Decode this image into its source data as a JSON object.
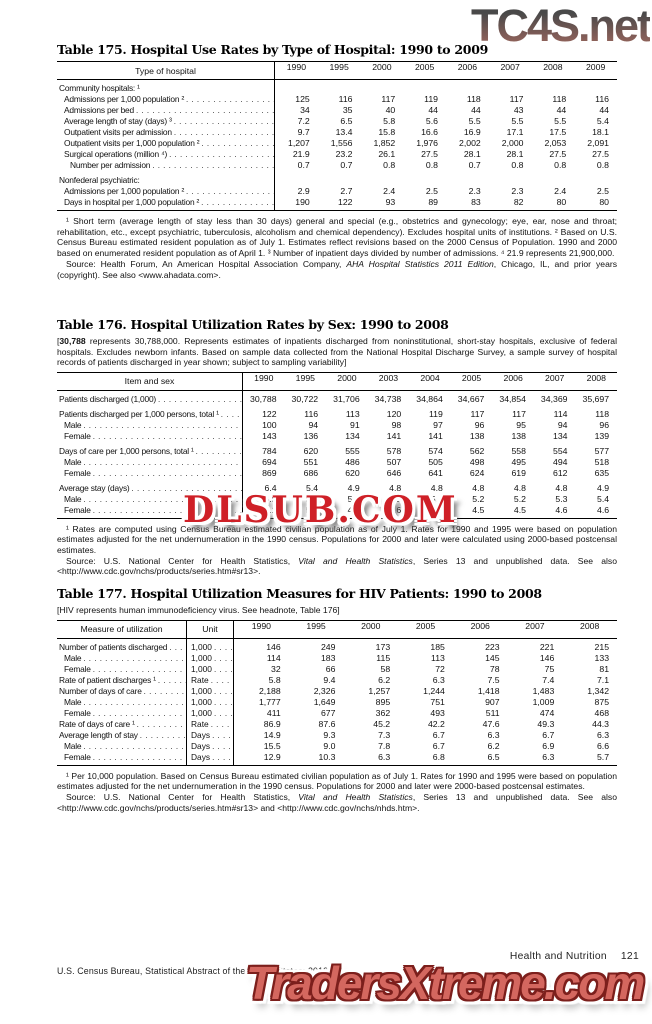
{
  "watermarks": {
    "top_right": {
      "text": "TC4S.net",
      "color_top": "#3a3a3a",
      "color_bottom": "#9a5c52"
    },
    "middle": {
      "text": "DLSUB.COM",
      "color": "#cf2027"
    },
    "bottom": {
      "text": "TradersXtreme.com",
      "fill": "#d4675f",
      "outline": "#7c1f1c"
    }
  },
  "footer": {
    "running_head": "Health and Nutrition",
    "page_number": "121",
    "source_line": "U.S. Census Bureau, Statistical Abstract of the United States: 2012"
  },
  "tables": [
    {
      "id": "t175",
      "title": "Table 175. Hospital Use Rates by Type of Hospital: 1990 to 2009",
      "stub_header": "Type of hospital",
      "unit_header": null,
      "years": [
        "1990",
        "1995",
        "2000",
        "2005",
        "2006",
        "2007",
        "2008",
        "2009"
      ],
      "rows": [
        {
          "label": "Community hospitals: ¹",
          "group": true,
          "indent": 0,
          "values": []
        },
        {
          "label": "Admissions per 1,000 population ²",
          "indent": 1,
          "values": [
            "125",
            "116",
            "117",
            "119",
            "118",
            "117",
            "118",
            "116"
          ]
        },
        {
          "label": "Admissions per bed",
          "indent": 1,
          "values": [
            "34",
            "35",
            "40",
            "44",
            "44",
            "43",
            "44",
            "44"
          ]
        },
        {
          "label": "Average length of stay (days) ³",
          "indent": 1,
          "values": [
            "7.2",
            "6.5",
            "5.8",
            "5.6",
            "5.5",
            "5.5",
            "5.5",
            "5.4"
          ]
        },
        {
          "label": "Outpatient visits per admission",
          "indent": 1,
          "values": [
            "9.7",
            "13.4",
            "15.8",
            "16.6",
            "16.9",
            "17.1",
            "17.5",
            "18.1"
          ]
        },
        {
          "label": "Outpatient visits per 1,000 population ²",
          "indent": 1,
          "values": [
            "1,207",
            "1,556",
            "1,852",
            "1,976",
            "2,002",
            "2,000",
            "2,053",
            "2,091"
          ]
        },
        {
          "label": "Surgical operations (million ⁴)",
          "indent": 1,
          "values": [
            "21.9",
            "23.2",
            "26.1",
            "27.5",
            "28.1",
            "28.1",
            "27.5",
            "27.5"
          ]
        },
        {
          "label": "Number per admission",
          "indent": 2,
          "values": [
            "0.7",
            "0.7",
            "0.8",
            "0.8",
            "0.7",
            "0.8",
            "0.8",
            "0.8"
          ]
        },
        {
          "label": "Nonfederal psychiatric:",
          "group": true,
          "gap": true,
          "indent": 0,
          "values": []
        },
        {
          "label": "Admissions per 1,000 population ²",
          "indent": 1,
          "values": [
            "2.9",
            "2.7",
            "2.4",
            "2.5",
            "2.3",
            "2.3",
            "2.4",
            "2.5"
          ]
        },
        {
          "label": "Days in hospital per 1,000 population ²",
          "indent": 1,
          "values": [
            "190",
            "122",
            "93",
            "89",
            "83",
            "82",
            "80",
            "80"
          ]
        }
      ],
      "headnote": null,
      "footnotes": [
        [
          {
            "t": "¹ Short term (average length of stay less than 30 days) general and special (e.g., obstetrics and gynecology; eye, ear, nose and throat; rehabilitation, etc., except psychiatric, tuberculosis, alcoholism and chemical dependency). Excludes hospital units of institutions. ² Based on U.S. Census Bureau estimated resident population as of July 1. Estimates reflect revisions based on the 2000 Census of Population. 1990 and 2000 based on enumerated resident population as of April 1. ³ Number of inpatient days divided by number of admissions. ⁴ 21.9 represents 21,900,000."
          }
        ],
        [
          {
            "t": "Source: Health Forum, An American Hospital Association Company, "
          },
          {
            "t": "AHA Hospital Statistics 2011 Edition",
            "i": true
          },
          {
            "t": ", Chicago, IL, and prior years (copyright). See also <www.ahadata.com>."
          }
        ]
      ]
    },
    {
      "id": "t176",
      "title": "Table 176. Hospital Utilization Rates by Sex: 1990 to 2008",
      "stub_header": "Item and sex",
      "unit_header": null,
      "years": [
        "1990",
        "1995",
        "2000",
        "2003",
        "2004",
        "2005",
        "2006",
        "2007",
        "2008"
      ],
      "rows": [
        {
          "label": "Patients discharged (1,000)",
          "indent": 0,
          "values": [
            "30,788",
            "30,722",
            "31,706",
            "34,738",
            "34,864",
            "34,667",
            "34,854",
            "34,369",
            "35,697"
          ]
        },
        {
          "label": "Patients discharged per 1,000 persons, total ¹",
          "indent": 0,
          "gap": true,
          "values": [
            "122",
            "116",
            "113",
            "120",
            "119",
            "117",
            "117",
            "114",
            "118"
          ]
        },
        {
          "label": "Male",
          "indent": 1,
          "values": [
            "100",
            "94",
            "91",
            "98",
            "97",
            "96",
            "95",
            "94",
            "96"
          ]
        },
        {
          "label": "Female",
          "indent": 1,
          "values": [
            "143",
            "136",
            "134",
            "141",
            "141",
            "138",
            "138",
            "134",
            "139"
          ]
        },
        {
          "label": "Days of care per 1,000 persons, total ¹",
          "indent": 0,
          "gap": true,
          "values": [
            "784",
            "620",
            "555",
            "578",
            "574",
            "562",
            "558",
            "554",
            "577"
          ]
        },
        {
          "label": "Male",
          "indent": 1,
          "values": [
            "694",
            "551",
            "486",
            "507",
            "505",
            "498",
            "495",
            "494",
            "518"
          ]
        },
        {
          "label": "Female",
          "indent": 1,
          "values": [
            "869",
            "686",
            "620",
            "646",
            "641",
            "624",
            "619",
            "612",
            "635"
          ]
        },
        {
          "label": "Average stay (days)",
          "indent": 0,
          "gap": true,
          "values": [
            "6.4",
            "5.4",
            "4.9",
            "4.8",
            "4.8",
            "4.8",
            "4.8",
            "4.8",
            "4.9"
          ]
        },
        {
          "label": "Male",
          "indent": 1,
          "values": [
            "6.9",
            "5.8",
            "5.3",
            "5.2",
            "5.2",
            "5.2",
            "5.2",
            "5.3",
            "5.4"
          ]
        },
        {
          "label": "Female",
          "indent": 1,
          "values": [
            "6.1",
            "5.0",
            "4.6",
            "4.6",
            "4.5",
            "4.5",
            "4.5",
            "4.6",
            "4.6"
          ]
        }
      ],
      "headnote": [
        {
          "t": "["
        },
        {
          "t": "30,788",
          "b": true
        },
        {
          "t": " represents 30,788,000. Represents estimates of inpatients discharged from noninstitutional, short-stay hospitals, exclusive of federal hospitals. Excludes newborn infants. Based on sample data collected from the National Hospital Discharge Survey, a sample survey of hospital records of patients discharged in year shown; subject to sampling variability]"
        }
      ],
      "footnotes": [
        [
          {
            "t": "¹ Rates are computed using Census Bureau estimated civilian population as of July 1. Rates for 1990 and 1995 were based on population estimates adjusted for the net undernumeration in the 1990 census. Populations for 2000 and later were calculated using 2000-based postcensal estimates."
          }
        ],
        [
          {
            "t": "Source: U.S. National Center for Health Statistics, "
          },
          {
            "t": "Vital and Health Statistics",
            "i": true
          },
          {
            "t": ", Series 13 and unpublished data. See also <http://www.cdc.gov/nchs/products/series.htm#sr13>."
          }
        ]
      ]
    },
    {
      "id": "t177",
      "title": "Table 177. Hospital Utilization Measures for HIV Patients: 1990 to 2008",
      "stub_header": "Measure of utilization",
      "unit_header": "Unit",
      "years": [
        "1990",
        "1995",
        "2000",
        "2005",
        "2006",
        "2007",
        "2008"
      ],
      "rows": [
        {
          "label": "Number of patients discharged",
          "unit": "1,000",
          "indent": 0,
          "values": [
            "146",
            "249",
            "173",
            "185",
            "223",
            "221",
            "215"
          ]
        },
        {
          "label": "Male",
          "unit": "1,000",
          "indent": 1,
          "values": [
            "114",
            "183",
            "115",
            "113",
            "145",
            "146",
            "133"
          ]
        },
        {
          "label": "Female",
          "unit": "1,000",
          "indent": 1,
          "values": [
            "32",
            "66",
            "58",
            "72",
            "78",
            "75",
            "81"
          ]
        },
        {
          "label": "Rate of patient discharges ¹",
          "unit": "Rate",
          "indent": 0,
          "values": [
            "5.8",
            "9.4",
            "6.2",
            "6.3",
            "7.5",
            "7.4",
            "7.1"
          ]
        },
        {
          "label": "Number of days of care",
          "unit": "1,000",
          "indent": 0,
          "values": [
            "2,188",
            "2,326",
            "1,257",
            "1,244",
            "1,418",
            "1,483",
            "1,342"
          ]
        },
        {
          "label": "Male",
          "unit": "1,000",
          "indent": 1,
          "values": [
            "1,777",
            "1,649",
            "895",
            "751",
            "907",
            "1,009",
            "875"
          ]
        },
        {
          "label": "Female",
          "unit": "1,000",
          "indent": 1,
          "values": [
            "411",
            "677",
            "362",
            "493",
            "511",
            "474",
            "468"
          ]
        },
        {
          "label": "Rate of days of care ¹",
          "unit": "Rate",
          "indent": 0,
          "values": [
            "86.9",
            "87.6",
            "45.2",
            "42.2",
            "47.6",
            "49.3",
            "44.3"
          ]
        },
        {
          "label": "Average length of stay",
          "unit": "Days",
          "indent": 0,
          "values": [
            "14.9",
            "9.3",
            "7.3",
            "6.7",
            "6.3",
            "6.7",
            "6.3"
          ]
        },
        {
          "label": "Male",
          "unit": "Days",
          "indent": 1,
          "values": [
            "15.5",
            "9.0",
            "7.8",
            "6.7",
            "6.2",
            "6.9",
            "6.6"
          ]
        },
        {
          "label": "Female",
          "unit": "Days",
          "indent": 1,
          "values": [
            "12.9",
            "10.3",
            "6.3",
            "6.8",
            "6.5",
            "6.3",
            "5.7"
          ]
        }
      ],
      "headnote": [
        {
          "t": "[HIV represents human immunodeficiency virus. See headnote, Table 176]"
        }
      ],
      "footnotes": [
        [
          {
            "t": "¹ Per 10,000 population. Based on Census Bureau estimated civilian population as of July 1. Rates for 1990 and 1995 were based on population estimates adjusted for the net undernumeration in the 1990 census. Populations for 2000 and later were 2000-based postcensal estimates."
          }
        ],
        [
          {
            "t": "Source: U.S. National Center for Health Statistics, "
          },
          {
            "t": "Vital and Health Statistics",
            "i": true
          },
          {
            "t": ", Series 13 and unpublished data. See also <http://www.cdc.gov/nchs/products/series.htm#sr13> and <http://www.cdc.gov/nchs/nhds.htm>."
          }
        ]
      ]
    }
  ]
}
